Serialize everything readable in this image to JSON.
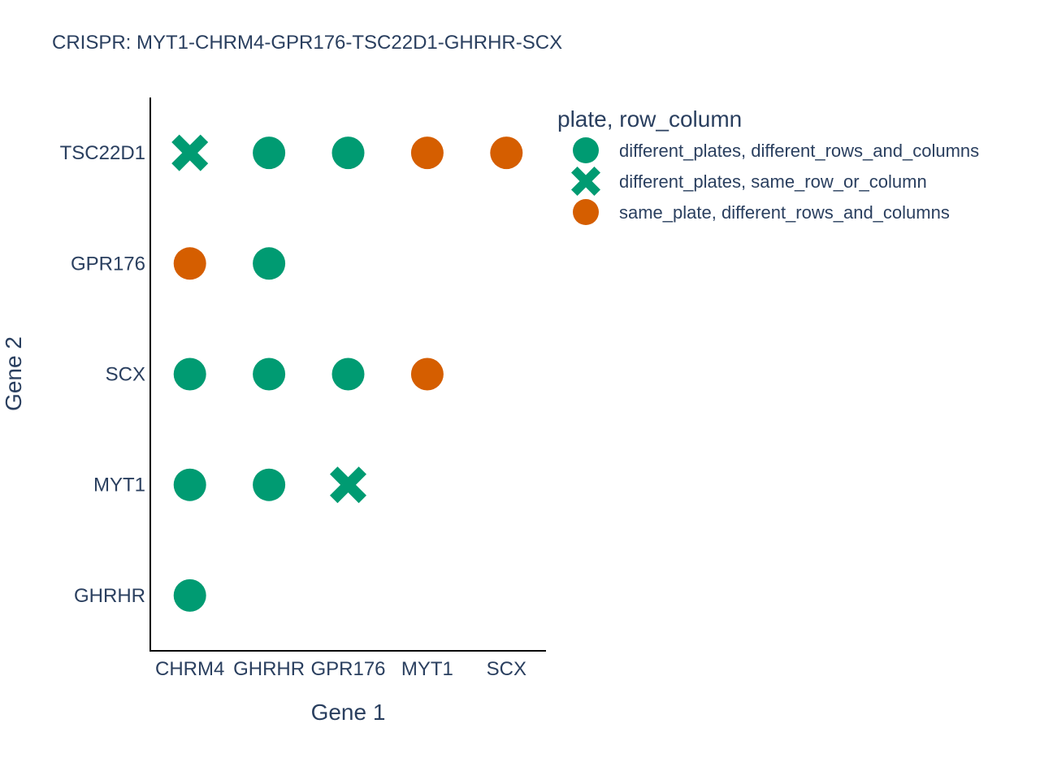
{
  "chart_data": {
    "type": "scatter",
    "title": "CRISPR: MYT1-CHRM4-GPR176-TSC22D1-GHRHR-SCX",
    "xlabel": "Gene 1",
    "ylabel": "Gene 2",
    "x_categories": [
      "CHRM4",
      "GHRHR",
      "GPR176",
      "MYT1",
      "SCX"
    ],
    "y_categories": [
      "GHRHR",
      "MYT1",
      "SCX",
      "GPR176",
      "TSC22D1"
    ],
    "legend_title": "plate, row_column",
    "legend_position": "top-right",
    "grid": false,
    "series": [
      {
        "name": "different_plates, different_rows_and_columns",
        "marker": "circle",
        "color": "#009B72",
        "points": [
          {
            "x": "GHRHR",
            "y": "TSC22D1"
          },
          {
            "x": "GPR176",
            "y": "TSC22D1"
          },
          {
            "x": "GHRHR",
            "y": "GPR176"
          },
          {
            "x": "CHRM4",
            "y": "SCX"
          },
          {
            "x": "GHRHR",
            "y": "SCX"
          },
          {
            "x": "GPR176",
            "y": "SCX"
          },
          {
            "x": "CHRM4",
            "y": "MYT1"
          },
          {
            "x": "GHRHR",
            "y": "MYT1"
          },
          {
            "x": "CHRM4",
            "y": "GHRHR"
          }
        ]
      },
      {
        "name": "different_plates, same_row_or_column",
        "marker": "x",
        "color": "#009B72",
        "points": [
          {
            "x": "CHRM4",
            "y": "TSC22D1"
          },
          {
            "x": "GPR176",
            "y": "MYT1"
          }
        ]
      },
      {
        "name": "same_plate, different_rows_and_columns",
        "marker": "circle",
        "color": "#D55E00",
        "points": [
          {
            "x": "MYT1",
            "y": "TSC22D1"
          },
          {
            "x": "SCX",
            "y": "TSC22D1"
          },
          {
            "x": "CHRM4",
            "y": "GPR176"
          },
          {
            "x": "MYT1",
            "y": "SCX"
          }
        ]
      }
    ]
  }
}
